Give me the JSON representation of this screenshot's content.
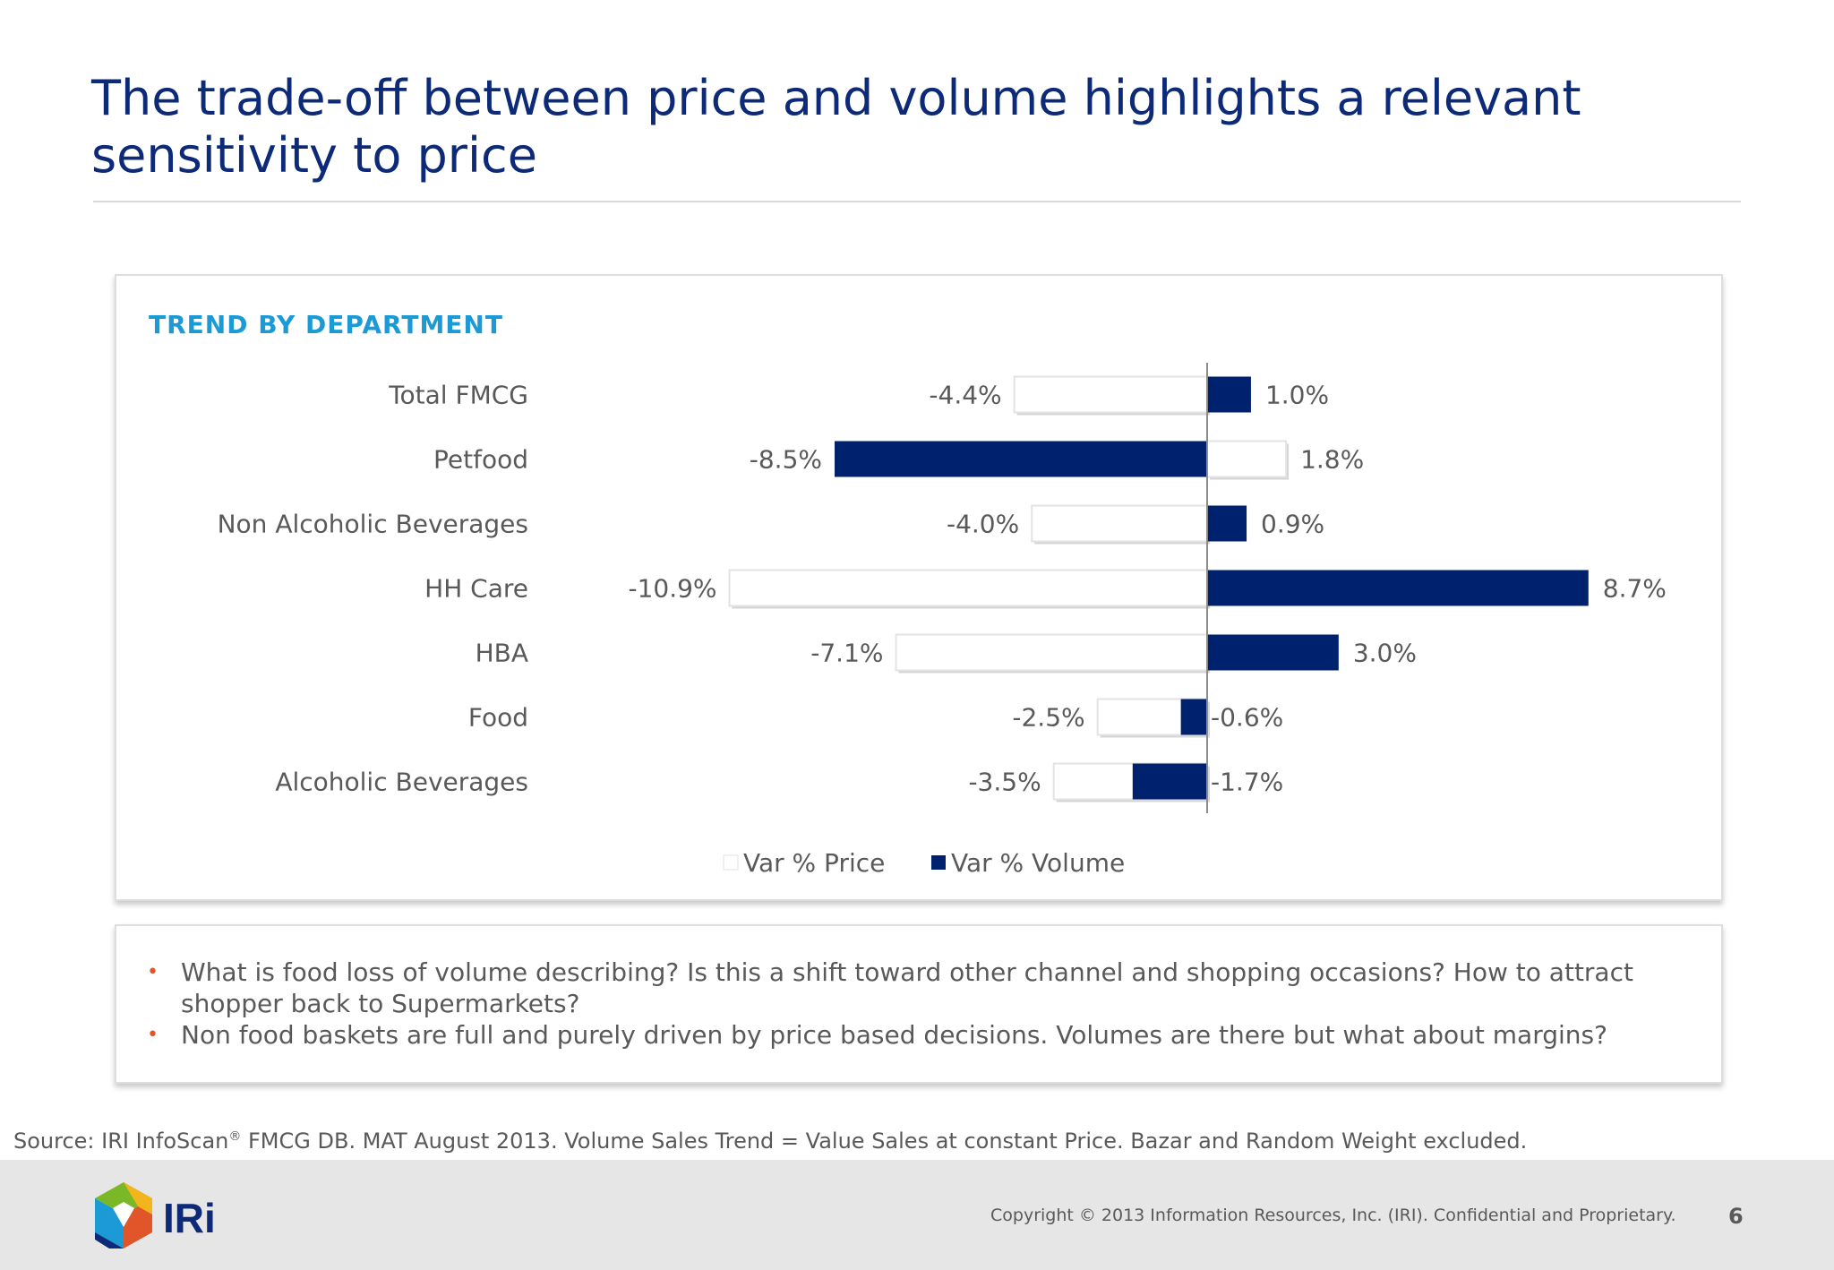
{
  "title": "The trade-off between price and volume highlights a relevant sensitivity to price",
  "chart_heading": "TREND BY DEPARTMENT",
  "chart_data": {
    "type": "bar",
    "orientation": "horizontal",
    "title": "TREND BY DEPARTMENT",
    "categories": [
      "Total FMCG",
      "Petfood",
      "Non Alcoholic Beverages",
      "HH Care",
      "HBA",
      "Food",
      "Alcoholic Beverages"
    ],
    "series": [
      {
        "name": "Var % Price",
        "color": "#ffffff",
        "values": [
          -4.4,
          1.8,
          -4.0,
          -10.9,
          -7.1,
          -2.5,
          -3.5
        ],
        "labels": [
          "-4.4%",
          "1.8%",
          "-4.0%",
          "-10.9%",
          "-7.1%",
          "-2.5%",
          "-3.5%"
        ]
      },
      {
        "name": "Var % Volume",
        "color": "#00226e",
        "values": [
          1.0,
          -8.5,
          0.9,
          8.7,
          3.0,
          -0.6,
          -1.7
        ],
        "labels": [
          "1.0%",
          "-8.5%",
          "0.9%",
          "8.7%",
          "3.0%",
          "-0.6%",
          "-1.7%"
        ]
      }
    ],
    "legend_position": "bottom",
    "grid": false
  },
  "notes": [
    "What is food loss of volume describing? Is this a shift toward other channel and shopping occasions? How to attract shopper back to Supermarkets?",
    "Non food baskets are full and purely driven by price based decisions. Volumes are there but what about margins?"
  ],
  "source": {
    "prefix": "Source: IRI InfoScan",
    "registered": "®",
    "suffix": " FMCG DB. MAT August 2013. Volume Sales Trend = Value Sales at constant Price. Bazar and Random Weight excluded."
  },
  "footer": {
    "logo_text": "IRi",
    "copyright": "Copyright © 2013 Information Resources, Inc. (IRI). Confidential and Proprietary.",
    "page_number": "6"
  }
}
